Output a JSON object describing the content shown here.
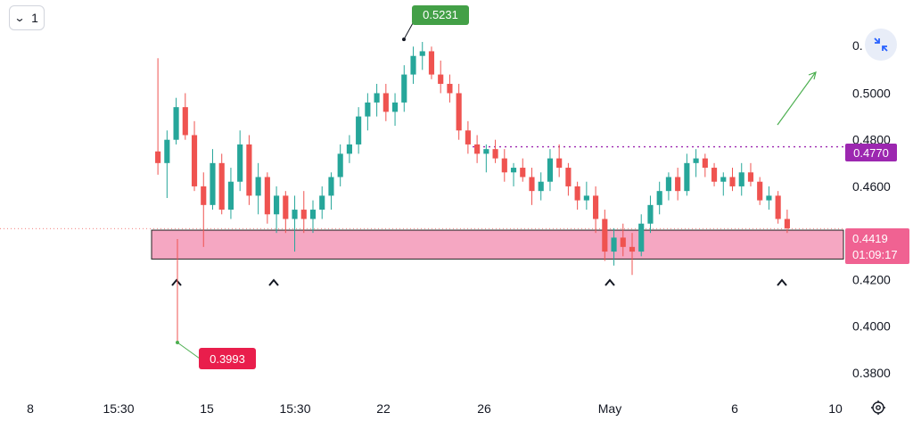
{
  "toolbar": {
    "interval_value": "1",
    "interval_icon": "chevron-down-icon"
  },
  "controls": {
    "collapse_icon": "collapse-arrows-icon",
    "settings_icon": "gear-icon"
  },
  "colors": {
    "up": "#26a69a",
    "down": "#ef5350",
    "zone_fill": "#f5a7c2",
    "resistance": "#9c27b0",
    "high_tag": "#43a047",
    "low_tag": "#e91e4c",
    "current_tag": "#f06292",
    "arrow": "#4caf50"
  },
  "chart_data": {
    "type": "candlestick",
    "ylim": [
      0.37,
      0.54
    ],
    "x_ticks": [
      "8",
      "15:30",
      "15",
      "15:30",
      "22",
      "26",
      "May",
      "6",
      "10"
    ],
    "y_ticks": [
      "0.5000",
      "0.4800",
      "0.4600",
      "0.4200",
      "0.4000",
      "0.3800"
    ],
    "y_ticks_values": [
      0.5,
      0.48,
      0.46,
      0.42,
      0.4,
      0.38
    ],
    "partial_tick_label": "0.",
    "annotations": {
      "high": {
        "label": "0.5231",
        "value": 0.5231
      },
      "low": {
        "label": "0.3993",
        "value": 0.3993
      },
      "resistance": {
        "label": "0.4770",
        "value": 0.477
      },
      "current_price": {
        "label": "0.4419",
        "value": 0.4419
      },
      "countdown": "01:09:17",
      "support_zone": {
        "low": 0.4288,
        "high": 0.4412
      },
      "swing_low_markers": 4
    },
    "candles": [
      [
        0.475,
        0.515,
        0.465,
        0.47
      ],
      [
        0.47,
        0.484,
        0.455,
        0.48
      ],
      [
        0.48,
        0.498,
        0.478,
        0.494
      ],
      [
        0.494,
        0.5,
        0.48,
        0.482
      ],
      [
        0.482,
        0.488,
        0.458,
        0.46
      ],
      [
        0.46,
        0.466,
        0.434,
        0.452
      ],
      [
        0.452,
        0.476,
        0.45,
        0.47
      ],
      [
        0.47,
        0.474,
        0.448,
        0.45
      ],
      [
        0.45,
        0.468,
        0.446,
        0.462
      ],
      [
        0.462,
        0.484,
        0.458,
        0.478
      ],
      [
        0.478,
        0.482,
        0.452,
        0.456
      ],
      [
        0.456,
        0.47,
        0.448,
        0.464
      ],
      [
        0.464,
        0.466,
        0.444,
        0.448
      ],
      [
        0.448,
        0.46,
        0.44,
        0.456
      ],
      [
        0.456,
        0.458,
        0.44,
        0.446
      ],
      [
        0.446,
        0.456,
        0.432,
        0.45
      ],
      [
        0.45,
        0.458,
        0.44,
        0.446
      ],
      [
        0.446,
        0.454,
        0.44,
        0.45
      ],
      [
        0.45,
        0.46,
        0.446,
        0.456
      ],
      [
        0.456,
        0.466,
        0.45,
        0.464
      ],
      [
        0.464,
        0.478,
        0.46,
        0.474
      ],
      [
        0.474,
        0.482,
        0.47,
        0.478
      ],
      [
        0.478,
        0.494,
        0.474,
        0.49
      ],
      [
        0.49,
        0.5,
        0.484,
        0.496
      ],
      [
        0.496,
        0.504,
        0.49,
        0.5
      ],
      [
        0.5,
        0.504,
        0.488,
        0.492
      ],
      [
        0.492,
        0.5,
        0.486,
        0.496
      ],
      [
        0.496,
        0.512,
        0.492,
        0.508
      ],
      [
        0.508,
        0.52,
        0.504,
        0.516
      ],
      [
        0.516,
        0.522,
        0.51,
        0.518
      ],
      [
        0.518,
        0.52,
        0.506,
        0.508
      ],
      [
        0.508,
        0.514,
        0.5,
        0.504
      ],
      [
        0.504,
        0.508,
        0.496,
        0.5
      ],
      [
        0.5,
        0.504,
        0.48,
        0.484
      ],
      [
        0.484,
        0.488,
        0.474,
        0.478
      ],
      [
        0.478,
        0.482,
        0.47,
        0.474
      ],
      [
        0.474,
        0.478,
        0.466,
        0.476
      ],
      [
        0.476,
        0.48,
        0.47,
        0.472
      ],
      [
        0.472,
        0.476,
        0.462,
        0.466
      ],
      [
        0.466,
        0.47,
        0.46,
        0.468
      ],
      [
        0.468,
        0.472,
        0.462,
        0.464
      ],
      [
        0.464,
        0.468,
        0.452,
        0.458
      ],
      [
        0.458,
        0.466,
        0.454,
        0.462
      ],
      [
        0.462,
        0.476,
        0.458,
        0.472
      ],
      [
        0.472,
        0.478,
        0.464,
        0.468
      ],
      [
        0.468,
        0.47,
        0.456,
        0.46
      ],
      [
        0.46,
        0.462,
        0.45,
        0.454
      ],
      [
        0.454,
        0.462,
        0.45,
        0.456
      ],
      [
        0.456,
        0.46,
        0.44,
        0.446
      ],
      [
        0.446,
        0.45,
        0.428,
        0.432
      ],
      [
        0.432,
        0.442,
        0.426,
        0.438
      ],
      [
        0.438,
        0.444,
        0.43,
        0.434
      ],
      [
        0.434,
        0.44,
        0.422,
        0.432
      ],
      [
        0.432,
        0.448,
        0.43,
        0.444
      ],
      [
        0.444,
        0.456,
        0.44,
        0.452
      ],
      [
        0.452,
        0.462,
        0.448,
        0.458
      ],
      [
        0.458,
        0.466,
        0.454,
        0.464
      ],
      [
        0.464,
        0.468,
        0.454,
        0.458
      ],
      [
        0.458,
        0.474,
        0.456,
        0.47
      ],
      [
        0.47,
        0.476,
        0.464,
        0.472
      ],
      [
        0.472,
        0.474,
        0.464,
        0.468
      ],
      [
        0.468,
        0.47,
        0.46,
        0.462
      ],
      [
        0.462,
        0.466,
        0.456,
        0.464
      ],
      [
        0.464,
        0.468,
        0.458,
        0.46
      ],
      [
        0.46,
        0.47,
        0.456,
        0.466
      ],
      [
        0.466,
        0.47,
        0.46,
        0.462
      ],
      [
        0.462,
        0.464,
        0.452,
        0.454
      ],
      [
        0.454,
        0.46,
        0.45,
        0.456
      ],
      [
        0.456,
        0.458,
        0.444,
        0.446
      ],
      [
        0.446,
        0.45,
        0.44,
        0.442
      ]
    ]
  }
}
